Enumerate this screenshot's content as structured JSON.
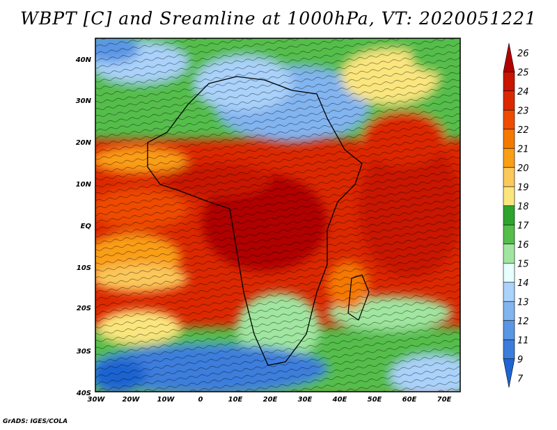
{
  "title": "WBPT [C] and Sreamline at 1000hPa, VT: 2020051221",
  "footer": "GrADS: IGES/COLA",
  "map": {
    "lat_labels": [
      "40N",
      "30N",
      "20N",
      "10N",
      "EQ",
      "10S",
      "20S",
      "30S",
      "40S"
    ],
    "lon_labels": [
      "30W",
      "20W",
      "10W",
      "0",
      "10E",
      "20E",
      "30E",
      "40E",
      "50E",
      "60E",
      "70E"
    ],
    "lon_range": [
      -30,
      75
    ],
    "lat_range": [
      -40,
      45
    ]
  },
  "colorbar": {
    "levels": [
      "26",
      "25",
      "24",
      "23",
      "22",
      "21",
      "20",
      "19",
      "18",
      "17",
      "16",
      "15",
      "14",
      "13",
      "12",
      "11",
      "9",
      "7"
    ],
    "colors": [
      "#b00000",
      "#c81400",
      "#dc2800",
      "#ee4c00",
      "#f57800",
      "#fa9e14",
      "#fbc85a",
      "#fbe67e",
      "#2da52d",
      "#55be4b",
      "#a0e6a0",
      "#e6ffff",
      "#aad2fa",
      "#82b4f0",
      "#5a96e6",
      "#3c7ddc",
      "#1e64d2"
    ]
  },
  "chart_data": {
    "type": "heatmap",
    "title": "WBPT [C] and Sreamline at 1000hPa, VT: 2020051221",
    "variable": "Wet-bulb potential temperature [C] with streamlines at 1000hPa",
    "valid_time": "2020051221",
    "x_range": [
      -30,
      75
    ],
    "y_range": [
      -40,
      45
    ],
    "color_levels": [
      7,
      9,
      11,
      12,
      13,
      14,
      15,
      16,
      17,
      18,
      19,
      20,
      21,
      22,
      23,
      24,
      25,
      26
    ]
  }
}
